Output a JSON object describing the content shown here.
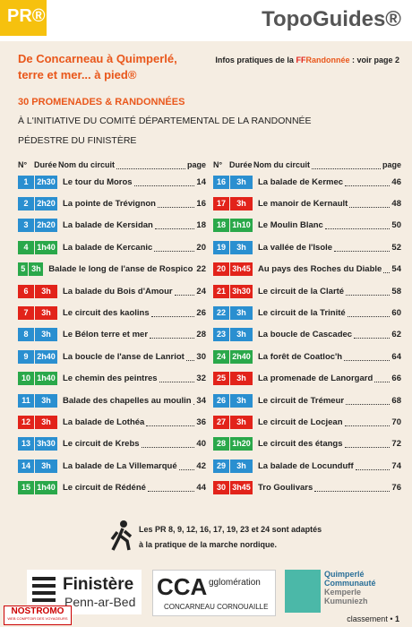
{
  "header": {
    "badge": "PR®",
    "brand": "TopoGuides®"
  },
  "title": {
    "line1": "De Concarneau à Quimperlé,",
    "line2": "terre et mer... à pied®"
  },
  "info": {
    "prefix": "Infos pratiques de la",
    "ff": "FF",
    "name": "Randonnée",
    "suffix": ": voir page 2"
  },
  "intro": {
    "count": "30 PROMENADES & RANDONNÉES",
    "line1": "À L'INITIATIVE DU COMITÉ DÉPARTEMENTAL DE LA RANDONNÉE",
    "line2": "PÉDESTRE DU FINISTÈRE"
  },
  "columns": {
    "num": "N°",
    "duration": "Durée",
    "name": "Nom du circuit",
    "page": "page"
  },
  "rows": [
    {
      "num": "1",
      "duration": "2h30",
      "name": "Le tour du Moros",
      "page": "14",
      "color": "#2a8fd0"
    },
    {
      "num": "2",
      "duration": "2h20",
      "name": "La pointe de Trévignon",
      "page": "16",
      "color": "#2a8fd0"
    },
    {
      "num": "3",
      "duration": "2h20",
      "name": "La balade de Kersidan",
      "page": "18",
      "color": "#2a8fd0"
    },
    {
      "num": "4",
      "duration": "1h40",
      "name": "La balade de Kercanic",
      "page": "20",
      "color": "#2aa84a"
    },
    {
      "num": "5",
      "duration": "3h",
      "name": "Balade le long de l'anse de Rospico",
      "page": "22",
      "color": "#2aa84a"
    },
    {
      "num": "6",
      "duration": "3h",
      "name": "La balade du Bois d'Amour",
      "page": "24",
      "color": "#e2231a"
    },
    {
      "num": "7",
      "duration": "3h",
      "name": "Le circuit des kaolins",
      "page": "26",
      "color": "#e2231a"
    },
    {
      "num": "8",
      "duration": "3h",
      "name": "Le Bélon terre et mer",
      "page": "28",
      "color": "#2a8fd0"
    },
    {
      "num": "9",
      "duration": "2h40",
      "name": "La boucle de l'anse de Lanriot",
      "page": "30",
      "color": "#2a8fd0"
    },
    {
      "num": "10",
      "duration": "1h40",
      "name": "Le chemin des peintres",
      "page": "32",
      "color": "#2aa84a"
    },
    {
      "num": "11",
      "duration": "3h",
      "name": "Balade des chapelles au moulin",
      "page": "34",
      "color": "#2a8fd0"
    },
    {
      "num": "12",
      "duration": "3h",
      "name": "La balade de Lothéa",
      "page": "36",
      "color": "#e2231a"
    },
    {
      "num": "13",
      "duration": "3h30",
      "name": "Le circuit de Krebs",
      "page": "40",
      "color": "#2a8fd0"
    },
    {
      "num": "14",
      "duration": "3h",
      "name": "La balade de La Villemarqué",
      "page": "42",
      "color": "#2a8fd0"
    },
    {
      "num": "15",
      "duration": "1h40",
      "name": "Le circuit de Rédéné",
      "page": "44",
      "color": "#2aa84a"
    },
    {
      "num": "16",
      "duration": "3h",
      "name": "La balade de Kermec",
      "page": "46",
      "color": "#2a8fd0"
    },
    {
      "num": "17",
      "duration": "3h",
      "name": "Le manoir de Kernault",
      "page": "48",
      "color": "#e2231a"
    },
    {
      "num": "18",
      "duration": "1h10",
      "name": "Le Moulin Blanc",
      "page": "50",
      "color": "#2aa84a"
    },
    {
      "num": "19",
      "duration": "3h",
      "name": "La vallée de l'Isole",
      "page": "52",
      "color": "#2a8fd0"
    },
    {
      "num": "20",
      "duration": "3h45",
      "name": "Au pays des Roches du Diable",
      "page": "54",
      "color": "#e2231a"
    },
    {
      "num": "21",
      "duration": "3h30",
      "name": "Le circuit de la Clarté",
      "page": "58",
      "color": "#e2231a"
    },
    {
      "num": "22",
      "duration": "3h",
      "name": "Le circuit de la Trinité",
      "page": "60",
      "color": "#2a8fd0"
    },
    {
      "num": "23",
      "duration": "3h",
      "name": "La boucle de Cascadec",
      "page": "62",
      "color": "#2a8fd0"
    },
    {
      "num": "24",
      "duration": "2h40",
      "name": "La forêt de Coatloc'h",
      "page": "64",
      "color": "#2aa84a"
    },
    {
      "num": "25",
      "duration": "3h",
      "name": "La promenade de Lanorgard",
      "page": "66",
      "color": "#e2231a"
    },
    {
      "num": "26",
      "duration": "3h",
      "name": "Le circuit de Trémeur",
      "page": "68",
      "color": "#2a8fd0"
    },
    {
      "num": "27",
      "duration": "3h",
      "name": "Le circuit de Locjean",
      "page": "70",
      "color": "#e2231a"
    },
    {
      "num": "28",
      "duration": "1h20",
      "name": "Le circuit des étangs",
      "page": "72",
      "color": "#2aa84a"
    },
    {
      "num": "29",
      "duration": "3h",
      "name": "La balade de Locunduff",
      "page": "74",
      "color": "#2a8fd0"
    },
    {
      "num": "30",
      "duration": "3h45",
      "name": "Tro Goulivars",
      "page": "76",
      "color": "#e2231a"
    }
  ],
  "note": {
    "line1": "Les PR 8, 9, 12, 16, 17, 19, 23 et 24 sont adaptés",
    "line2": "à la pratique de la marche nordique."
  },
  "logos": {
    "finistere": "Finistère",
    "finistere_br": "Penn-ar-Bed",
    "cca": "CCA",
    "cca_rest": "gglomération",
    "cca_sub": "CONCARNEAU CORNOUAILLE",
    "qc1": "Quimperlé",
    "qc2": "Communauté",
    "qc3": "Kemperle",
    "qc4": "Kumuniezh"
  },
  "stamp": {
    "name": "NOSTROMO",
    "sub": "WEB COMPTOIR DES VOYAGEURS"
  },
  "footer": {
    "label": "classement",
    "page": "1"
  }
}
